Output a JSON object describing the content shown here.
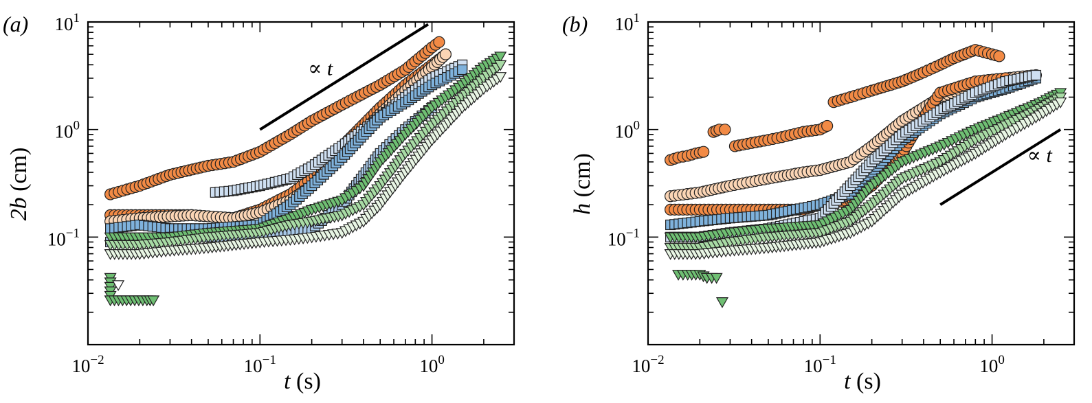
{
  "figure": {
    "panels": [
      "(a)",
      "(b)"
    ]
  },
  "chart_data": [
    {
      "type": "scatter",
      "panel_label": "(a)",
      "xlabel_var": "t",
      "xlabel_unit": " (s)",
      "ylabel_var": "2b",
      "ylabel_unit": " (cm)",
      "xscale": "log",
      "yscale": "log",
      "xlim": [
        0.01,
        3
      ],
      "ylim": [
        0.01,
        10
      ],
      "x_ticks": [
        {
          "mantissa": "10",
          "exp": "−2",
          "value": 0.01
        },
        {
          "mantissa": "10",
          "exp": "−1",
          "value": 0.1
        },
        {
          "mantissa": "10",
          "exp": "0",
          "value": 1
        }
      ],
      "y_ticks": [
        {
          "mantissa": "10",
          "exp": "−1",
          "value": 0.1
        },
        {
          "mantissa": "10",
          "exp": "0",
          "value": 1
        },
        {
          "mantissa": "10",
          "exp": "1",
          "value": 10
        }
      ],
      "annotation": {
        "text": "∝ t",
        "x": 0.19,
        "y": 3.2
      },
      "reference_line": {
        "x": [
          0.1,
          0.95
        ],
        "y": [
          1.0,
          9.5
        ]
      },
      "series": [
        {
          "color": "#f28a45",
          "marker": "circle",
          "x": [
            0.0135,
            0.02,
            0.03,
            0.05,
            0.07,
            0.1,
            0.15,
            0.2,
            0.3,
            0.5,
            0.7,
            1.0,
            1.1
          ],
          "y": [
            0.25,
            0.3,
            0.38,
            0.46,
            0.5,
            0.62,
            0.9,
            1.2,
            1.7,
            2.6,
            3.6,
            5.8,
            6.5
          ]
        },
        {
          "color": "#f28a45",
          "marker": "circle",
          "x": [
            0.0135,
            0.02,
            0.04,
            0.07,
            0.1,
            0.15,
            0.2,
            0.3,
            0.5,
            0.7,
            1.0,
            1.2
          ],
          "y": [
            0.16,
            0.16,
            0.16,
            0.15,
            0.18,
            0.25,
            0.35,
            0.7,
            1.6,
            2.6,
            4.0,
            5.0
          ]
        },
        {
          "color": "#fbd5b5",
          "marker": "circle",
          "x": [
            0.0135,
            0.02,
            0.04,
            0.07,
            0.1,
            0.15,
            0.2,
            0.3,
            0.5,
            0.7,
            1.0,
            1.2
          ],
          "y": [
            0.14,
            0.15,
            0.16,
            0.15,
            0.17,
            0.22,
            0.3,
            0.6,
            1.4,
            2.3,
            3.8,
            5.0
          ]
        },
        {
          "color": "#cfe0f2",
          "marker": "square",
          "x": [
            0.055,
            0.07,
            0.1,
            0.15,
            0.2,
            0.3,
            0.5,
            0.7,
            1.0,
            1.5
          ],
          "y": [
            0.26,
            0.27,
            0.3,
            0.35,
            0.45,
            0.7,
            1.3,
            2.0,
            3.0,
            4.0
          ]
        },
        {
          "color": "#7fb2dc",
          "marker": "square",
          "x": [
            0.0135,
            0.02,
            0.03,
            0.05,
            0.1,
            0.15,
            0.2,
            0.3,
            0.4,
            0.5,
            0.7,
            1.0,
            1.5
          ],
          "y": [
            0.12,
            0.13,
            0.12,
            0.12,
            0.13,
            0.2,
            0.3,
            0.55,
            0.9,
            1.3,
            1.8,
            2.6,
            3.6
          ]
        },
        {
          "color": "#a8c9e8",
          "marker": "square",
          "x": [
            0.0135,
            0.02,
            0.03,
            0.05,
            0.1,
            0.2,
            0.3,
            0.5,
            0.7,
            1.0
          ],
          "y": [
            0.09,
            0.095,
            0.1,
            0.1,
            0.1,
            0.12,
            0.2,
            0.6,
            1.0,
            1.6
          ]
        },
        {
          "color": "#6fbf73",
          "marker": "triangle-down",
          "x": [
            0.0135,
            0.02,
            0.03,
            0.05,
            0.1,
            0.15,
            0.2,
            0.3,
            0.4,
            0.5,
            0.7,
            1.0,
            1.5,
            2.0,
            2.5
          ],
          "y": [
            0.1,
            0.1,
            0.1,
            0.11,
            0.12,
            0.15,
            0.18,
            0.22,
            0.3,
            0.5,
            0.9,
            1.6,
            2.6,
            3.8,
            4.8
          ]
        },
        {
          "color": "#a8dba5",
          "marker": "triangle-down",
          "x": [
            0.0135,
            0.02,
            0.03,
            0.05,
            0.1,
            0.15,
            0.2,
            0.3,
            0.4,
            0.5,
            0.7,
            1.0,
            1.5,
            2.0,
            2.5
          ],
          "y": [
            0.085,
            0.085,
            0.09,
            0.1,
            0.11,
            0.13,
            0.14,
            0.16,
            0.2,
            0.3,
            0.6,
            1.1,
            2.0,
            3.0,
            4.0
          ]
        },
        {
          "color": "#e8f5e4",
          "marker": "triangle-down",
          "x": [
            0.0135,
            0.02,
            0.03,
            0.05,
            0.1,
            0.15,
            0.2,
            0.3,
            0.4,
            0.5,
            0.7,
            1.0,
            1.5,
            2.0,
            2.5
          ],
          "y": [
            0.07,
            0.07,
            0.075,
            0.08,
            0.09,
            0.095,
            0.1,
            0.11,
            0.14,
            0.2,
            0.4,
            0.8,
            1.6,
            2.4,
            3.1
          ]
        },
        {
          "color": "#6fbf73",
          "marker": "triangle-down",
          "x": [
            0.0135,
            0.0135,
            0.022,
            0.024
          ],
          "y": [
            0.042,
            0.026,
            0.026,
            0.026
          ]
        },
        {
          "color": "#ffffff",
          "marker": "triangle-down",
          "x": [
            0.015
          ],
          "y": [
            0.036
          ]
        }
      ]
    },
    {
      "type": "scatter",
      "panel_label": "(b)",
      "xlabel_var": "t",
      "xlabel_unit": " (s)",
      "ylabel_var": "h",
      "ylabel_unit": " (cm)",
      "xscale": "log",
      "yscale": "log",
      "xlim": [
        0.01,
        3
      ],
      "ylim": [
        0.01,
        10
      ],
      "x_ticks": [
        {
          "mantissa": "10",
          "exp": "−2",
          "value": 0.01
        },
        {
          "mantissa": "10",
          "exp": "−1",
          "value": 0.1
        },
        {
          "mantissa": "10",
          "exp": "0",
          "value": 1
        }
      ],
      "y_ticks": [
        {
          "mantissa": "10",
          "exp": "−1",
          "value": 0.1
        },
        {
          "mantissa": "10",
          "exp": "0",
          "value": 1
        },
        {
          "mantissa": "10",
          "exp": "1",
          "value": 10
        }
      ],
      "annotation": {
        "text": "∝ t",
        "x": 1.6,
        "y": 0.5
      },
      "reference_line": {
        "x": [
          0.5,
          2.5
        ],
        "y": [
          0.2,
          1.0
        ]
      },
      "series": [
        {
          "color": "#f28a45",
          "marker": "circle",
          "x": [
            0.0135,
            0.015,
            0.017,
            0.019,
            0.021
          ],
          "y": [
            0.52,
            0.55,
            0.57,
            0.6,
            0.62
          ]
        },
        {
          "color": "#f28a45",
          "marker": "circle",
          "x": [
            0.024,
            0.026,
            0.028
          ],
          "y": [
            0.95,
            1.0,
            1.0
          ]
        },
        {
          "color": "#f28a45",
          "marker": "circle",
          "x": [
            0.032,
            0.04,
            0.05,
            0.06,
            0.08,
            0.1,
            0.11
          ],
          "y": [
            0.7,
            0.75,
            0.8,
            0.85,
            0.95,
            1.0,
            1.08
          ]
        },
        {
          "color": "#f28a45",
          "marker": "circle",
          "x": [
            0.12,
            0.15,
            0.2,
            0.3,
            0.4,
            0.5,
            0.6,
            0.8,
            1.0,
            1.1
          ],
          "y": [
            1.8,
            2.0,
            2.3,
            2.8,
            3.4,
            4.0,
            4.6,
            5.5,
            5.0,
            4.8
          ]
        },
        {
          "color": "#fbd5b5",
          "marker": "circle",
          "x": [
            0.0135,
            0.02,
            0.03,
            0.05,
            0.08,
            0.1,
            0.15,
            0.2,
            0.3,
            0.5,
            0.8,
            1.2,
            1.8
          ],
          "y": [
            0.24,
            0.26,
            0.3,
            0.35,
            0.4,
            0.42,
            0.5,
            0.7,
            1.2,
            2.0,
            2.6,
            3.0,
            3.2
          ]
        },
        {
          "color": "#f28a45",
          "marker": "circle",
          "x": [
            0.0135,
            0.02,
            0.03,
            0.05,
            0.08,
            0.1,
            0.15,
            0.2,
            0.3,
            0.4,
            0.5,
            0.8,
            1.2
          ],
          "y": [
            0.18,
            0.18,
            0.18,
            0.18,
            0.18,
            0.2,
            0.22,
            0.3,
            0.6,
            1.3,
            2.2,
            2.8,
            3.0
          ]
        },
        {
          "color": "#7fb2dc",
          "marker": "square",
          "x": [
            0.0135,
            0.02,
            0.03,
            0.05,
            0.1,
            0.15,
            0.2,
            0.3,
            0.5,
            0.8,
            1.2,
            1.8
          ],
          "y": [
            0.13,
            0.14,
            0.15,
            0.16,
            0.2,
            0.25,
            0.4,
            0.8,
            1.4,
            2.0,
            2.4,
            3.0
          ]
        },
        {
          "color": "#cfe0f2",
          "marker": "square",
          "x": [
            0.0135,
            0.02,
            0.03,
            0.05,
            0.1,
            0.15,
            0.2,
            0.3,
            0.5,
            0.8,
            1.2,
            1.8
          ],
          "y": [
            0.1,
            0.1,
            0.11,
            0.12,
            0.15,
            0.3,
            0.5,
            0.9,
            1.5,
            2.2,
            2.8,
            3.2
          ]
        },
        {
          "color": "#6fbf73",
          "marker": "triangle-down",
          "x": [
            0.0135,
            0.02,
            0.03,
            0.05,
            0.1,
            0.15,
            0.2,
            0.3,
            0.5,
            0.8,
            1.2,
            1.8,
            2.5
          ],
          "y": [
            0.1,
            0.1,
            0.11,
            0.12,
            0.13,
            0.18,
            0.3,
            0.5,
            0.7,
            1.0,
            1.3,
            1.7,
            2.2
          ]
        },
        {
          "color": "#a8dba5",
          "marker": "triangle-down",
          "x": [
            0.0135,
            0.02,
            0.03,
            0.05,
            0.1,
            0.15,
            0.2,
            0.3,
            0.5,
            0.8,
            1.2,
            1.8,
            2.5
          ],
          "y": [
            0.08,
            0.08,
            0.09,
            0.1,
            0.11,
            0.14,
            0.2,
            0.35,
            0.5,
            0.8,
            1.1,
            1.5,
            2.0
          ]
        },
        {
          "color": "#e8f5e4",
          "marker": "triangle-down",
          "x": [
            0.0135,
            0.02,
            0.03,
            0.05,
            0.1,
            0.15,
            0.2,
            0.3,
            0.5,
            0.8,
            1.2,
            1.8,
            2.5
          ],
          "y": [
            0.07,
            0.07,
            0.075,
            0.08,
            0.09,
            0.11,
            0.14,
            0.25,
            0.4,
            0.6,
            0.9,
            1.3,
            1.8
          ]
        },
        {
          "color": "#6fbf73",
          "marker": "triangle-down",
          "x": [
            0.015,
            0.017,
            0.02,
            0.022,
            0.025
          ],
          "y": [
            0.045,
            0.045,
            0.045,
            0.042,
            0.042
          ]
        },
        {
          "color": "#6fbf73",
          "marker": "triangle-down",
          "x": [
            0.027
          ],
          "y": [
            0.025
          ]
        }
      ]
    }
  ]
}
